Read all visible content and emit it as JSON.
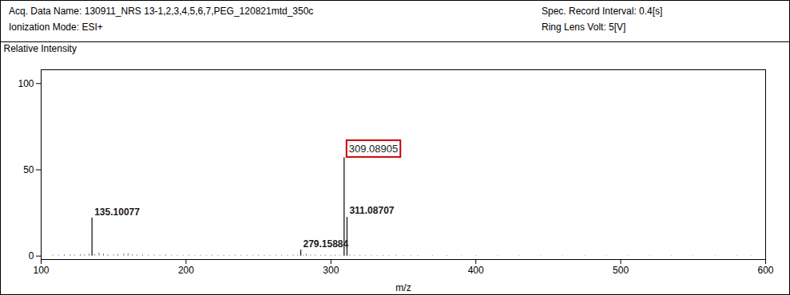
{
  "chart_data": {
    "type": "spectrum",
    "annotations": [
      "Acq. Data Name: 130911_NRS 13-1,2,3,4,5,6,7,PEG_120821mtd_350c",
      "Ionization Mode: ESI+",
      "Spec. Record Interval: 0.4[s]",
      "Ring Lens Volt: 5[V]"
    ],
    "xlabel": "m/z",
    "ylabel": "Relative Intensity",
    "xlim": [
      100,
      600
    ],
    "ylim": [
      -2,
      108
    ],
    "xticks": [
      100,
      200,
      300,
      400,
      500,
      600
    ],
    "yticks": [
      0,
      50,
      100
    ],
    "color": "#1a1a1a",
    "series": [
      {
        "x": [
          108,
          112,
          116,
          120,
          123,
          127,
          130,
          133,
          137,
          140,
          143,
          146,
          150,
          153,
          157,
          160,
          163,
          166,
          170,
          174,
          178,
          182,
          186,
          190,
          194,
          198,
          202,
          206,
          210,
          214,
          218,
          222,
          226,
          230,
          234,
          238,
          242,
          246,
          250,
          254,
          258,
          262,
          266,
          270,
          274,
          277,
          281,
          283,
          286,
          289,
          293,
          296,
          300,
          303,
          306,
          313,
          316,
          320,
          324,
          328,
          332,
          336,
          340,
          345,
          350,
          355,
          360,
          370,
          380,
          390,
          400,
          415,
          430,
          445,
          460,
          475,
          490,
          505,
          520,
          535,
          550,
          565,
          580,
          590
        ],
        "values": [
          0.6,
          0.5,
          0.7,
          0.8,
          0.6,
          0.9,
          0.7,
          1.2,
          1.0,
          1.8,
          1.2,
          0.9,
          0.7,
          1.0,
          1.3,
          1.5,
          0.8,
          0.6,
          0.7,
          0.5,
          0.6,
          0.5,
          0.6,
          0.4,
          0.5,
          0.4,
          0.5,
          0.4,
          0.5,
          0.4,
          0.5,
          0.4,
          0.5,
          0.4,
          0.5,
          0.4,
          0.5,
          0.4,
          0.5,
          0.4,
          0.5,
          0.4,
          0.5,
          0.4,
          0.6,
          0.5,
          0.5,
          1.2,
          0.6,
          0.5,
          0.5,
          0.6,
          0.5,
          0.6,
          0.5,
          0.7,
          0.5,
          0.5,
          0.4,
          0.4,
          0.3,
          0.4,
          0.3,
          0.4,
          0.3,
          0.3,
          0.3,
          0.3,
          0.3,
          0.2,
          0.3,
          0.2,
          0.2,
          0.2,
          0.2,
          0.2,
          0.2,
          0.2,
          0.2,
          0.2,
          0.2,
          0.2,
          0.2,
          0.2
        ]
      },
      {
        "x": [
          135.10077,
          279.15884,
          309.08905,
          311.08707
        ],
        "values": [
          22.0,
          3.5,
          57.0,
          22.5
        ],
        "labels": [
          "135.10077",
          "279.15884",
          "309.08905",
          "311.08707"
        ],
        "boxed": [
          false,
          false,
          true,
          false
        ],
        "box_color": "#cc0000"
      }
    ]
  }
}
